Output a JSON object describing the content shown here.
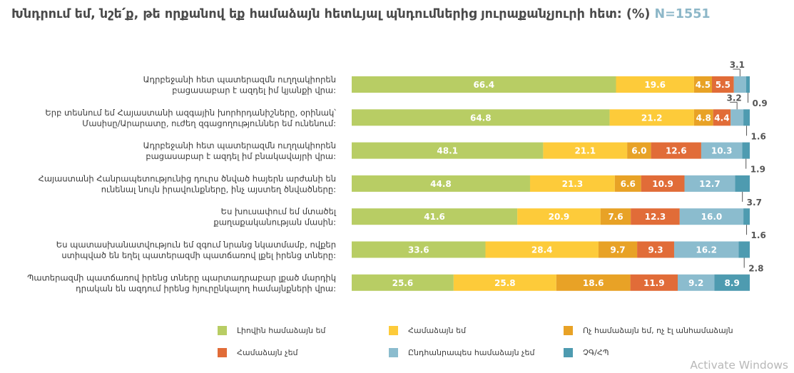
{
  "title": "Խնդրում եմ, նշե՛ք, թե որքանով եք համաձայն հետևյալ պնդումներից յուրաքանչյուրի հետ: (%)",
  "sample": "N=1551",
  "watermark": "Activate Windows",
  "legend": [
    {
      "label": "Լիովին համաձայն եմ",
      "color": "#b8cd64"
    },
    {
      "label": "Համաձայն եմ",
      "color": "#fdcb3a"
    },
    {
      "label": "Ոչ համաձայն եմ, ոչ էլ անհամաձայն",
      "color": "#e8a226"
    },
    {
      "label": "Համաձայն չեմ",
      "color": "#e16c38"
    },
    {
      "label": "Ընդհանրապես համաձայն չեմ",
      "color": "#8bbcce"
    },
    {
      "label": "ՉԳ/ՀՊ",
      "color": "#4e9bb0"
    }
  ],
  "chart_data": {
    "type": "bar",
    "orientation": "horizontal",
    "stacked": true,
    "xlim": [
      0,
      100
    ],
    "categories": [
      [
        "Ադրբեջանի հետ պատերազմն ուղղակիորեն",
        "բացասաբար է ազդել իմ կյանքի վրա:"
      ],
      [
        "Երբ տեսնում եմ Հայաստանի ազգային խորհրդանիշները, օրինակ՝",
        "Մասիսը/Արարատը, ուժեղ զգացողություններ եմ ունենում:"
      ],
      [
        "Ադրբեջանի հետ պատերազմն ուղղակիորեն",
        "բացասաբար է ազդել իմ բնակավայրի վրա:"
      ],
      [
        "Հայաստանի Հանրապետությունից դուրս ծնված հայերն արժանի են",
        "ունենալ նույն իրավունքները, ինչ այստեղ ծնվածները:"
      ],
      [
        "Ես խուսափում եմ մտածել",
        "քաղաքականության մասին:"
      ],
      [
        "Ես պատասխանատվություն եմ զգում նրանց նկատմամբ, ովքեր",
        "ստիպված են եղել պատերազմի պատճառով լքել իրենց տները:"
      ],
      [
        "Պատերազմի պատճառով իրենց տները պարտադրաբար լքած մարդիկ",
        "դրական են ազդում իրենց հյուրընկալող համայնքների վրա:"
      ]
    ],
    "series": [
      {
        "name": "Լիովին համաձայն եմ",
        "values": [
          66.4,
          64.8,
          48.1,
          44.8,
          41.6,
          33.6,
          25.6
        ]
      },
      {
        "name": "Համաձայն եմ",
        "values": [
          19.6,
          21.2,
          21.1,
          21.3,
          20.9,
          28.4,
          25.8
        ]
      },
      {
        "name": "Ոչ համաձայն եմ, ոչ էլ անհամաձայն",
        "values": [
          4.5,
          4.8,
          6.0,
          6.6,
          7.6,
          9.7,
          18.6
        ]
      },
      {
        "name": "Համաձայն չեմ",
        "values": [
          5.5,
          4.4,
          12.6,
          10.9,
          12.3,
          9.3,
          11.9
        ]
      },
      {
        "name": "Ընդհանրապես համաձայն չեմ",
        "values": [
          3.1,
          3.2,
          10.3,
          12.7,
          16.0,
          16.2,
          9.2
        ]
      },
      {
        "name": "ՉԳ/ՀՊ",
        "values": [
          0.9,
          1.6,
          1.9,
          3.7,
          1.6,
          2.8,
          8.9
        ]
      }
    ],
    "callouts": [
      {
        "row": 0,
        "series": 4,
        "value": 3.1,
        "side": "above"
      },
      {
        "row": 0,
        "series": 5,
        "value": 0.9,
        "side": "below"
      },
      {
        "row": 1,
        "series": 4,
        "value": 3.2,
        "side": "above"
      },
      {
        "row": 1,
        "series": 5,
        "value": 1.6,
        "side": "below"
      },
      {
        "row": 2,
        "series": 5,
        "value": 1.9,
        "side": "below"
      },
      {
        "row": 3,
        "series": 5,
        "value": 3.7,
        "side": "below"
      },
      {
        "row": 4,
        "series": 5,
        "value": 1.6,
        "side": "below"
      },
      {
        "row": 5,
        "series": 5,
        "value": 2.8,
        "side": "below"
      }
    ]
  }
}
